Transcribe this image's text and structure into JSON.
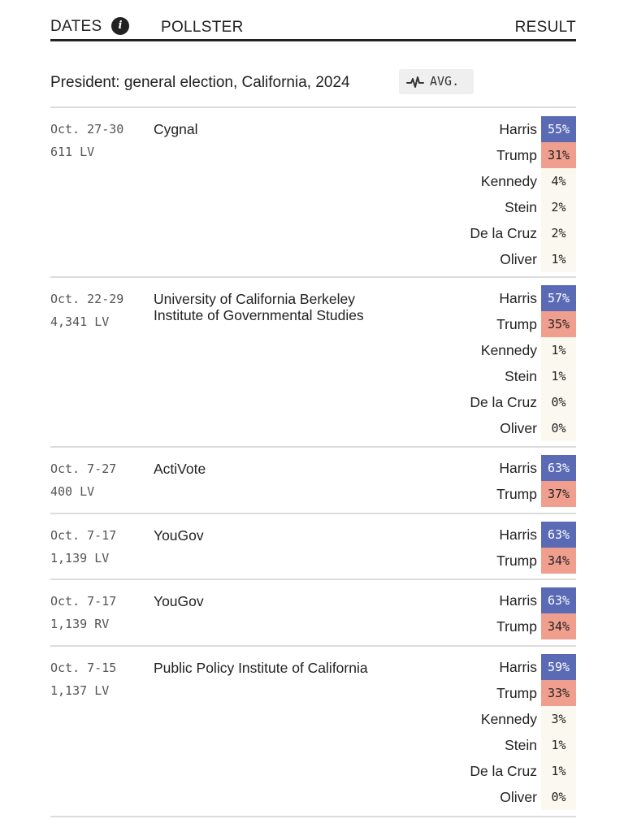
{
  "header": {
    "dates_label": "DATES",
    "info_icon_glyph": "i",
    "pollster_label": "POLLSTER",
    "result_label": "RESULT"
  },
  "race": {
    "title": "President: general election, California, 2024",
    "avg_label": "AVG.",
    "avg_icon": "pulse-icon"
  },
  "colors": {
    "harris": "#5a6ab5",
    "trump": "#f09f8e",
    "other": "#fbf8ef"
  },
  "polls": [
    {
      "dates": "Oct. 27-30",
      "sample_size": "611",
      "population": "LV",
      "pollster": [
        "Cygnal"
      ],
      "results": [
        {
          "name": "Harris",
          "pct": "55%"
        },
        {
          "name": "Trump",
          "pct": "31%"
        },
        {
          "name": "Kennedy",
          "pct": "4%"
        },
        {
          "name": "Stein",
          "pct": "2%"
        },
        {
          "name": "De la Cruz",
          "pct": "2%"
        },
        {
          "name": "Oliver",
          "pct": "1%"
        }
      ]
    },
    {
      "dates": "Oct. 22-29",
      "sample_size": "4,341",
      "population": "LV",
      "pollster": [
        "University of California Berkeley",
        "Institute of Governmental Studies"
      ],
      "results": [
        {
          "name": "Harris",
          "pct": "57%"
        },
        {
          "name": "Trump",
          "pct": "35%"
        },
        {
          "name": "Kennedy",
          "pct": "1%"
        },
        {
          "name": "Stein",
          "pct": "1%"
        },
        {
          "name": "De la Cruz",
          "pct": "0%"
        },
        {
          "name": "Oliver",
          "pct": "0%"
        }
      ]
    },
    {
      "dates": "Oct. 7-27",
      "sample_size": "400",
      "population": "LV",
      "pollster": [
        "ActiVote"
      ],
      "results": [
        {
          "name": "Harris",
          "pct": "63%"
        },
        {
          "name": "Trump",
          "pct": "37%"
        }
      ]
    },
    {
      "dates": "Oct. 7-17",
      "sample_size": "1,139",
      "population": "LV",
      "pollster": [
        "YouGov"
      ],
      "results": [
        {
          "name": "Harris",
          "pct": "63%"
        },
        {
          "name": "Trump",
          "pct": "34%"
        }
      ]
    },
    {
      "dates": "Oct. 7-17",
      "sample_size": "1,139",
      "population": "RV",
      "pollster": [
        "YouGov"
      ],
      "results": [
        {
          "name": "Harris",
          "pct": "63%"
        },
        {
          "name": "Trump",
          "pct": "34%"
        }
      ]
    },
    {
      "dates": "Oct. 7-15",
      "sample_size": "1,137",
      "population": "LV",
      "pollster": [
        "Public Policy Institute of California"
      ],
      "results": [
        {
          "name": "Harris",
          "pct": "59%"
        },
        {
          "name": "Trump",
          "pct": "33%"
        },
        {
          "name": "Kennedy",
          "pct": "3%"
        },
        {
          "name": "Stein",
          "pct": "1%"
        },
        {
          "name": "De la Cruz",
          "pct": "1%"
        },
        {
          "name": "Oliver",
          "pct": "0%"
        }
      ]
    }
  ]
}
